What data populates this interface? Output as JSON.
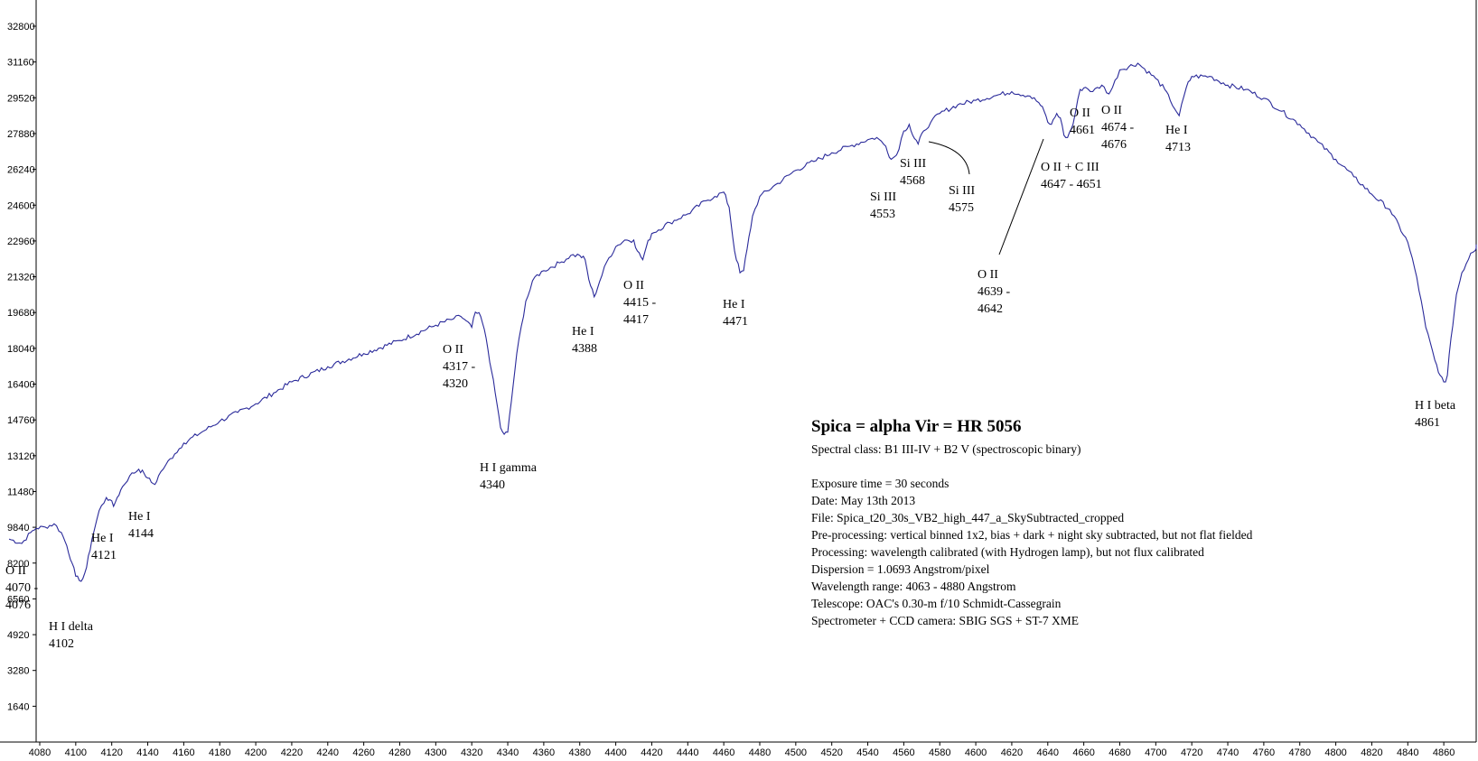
{
  "chart_data": {
    "type": "line",
    "title": "Spica = alpha Vir = HR 5056",
    "xlabel": "",
    "ylabel": "",
    "xlim": [
      4078,
      4878
    ],
    "ylim": [
      0,
      34000
    ],
    "x_ticks": [
      "4080",
      "4100",
      "4120",
      "4140",
      "4160",
      "4180",
      "4200",
      "4220",
      "4240",
      "4260",
      "4280",
      "4300",
      "4320",
      "4340",
      "4360",
      "4380",
      "4400",
      "4420",
      "4440",
      "4460",
      "4480",
      "4500",
      "4520",
      "4540",
      "4560",
      "4580",
      "4600",
      "4620",
      "4640",
      "4660",
      "4680",
      "4700",
      "4720",
      "4740",
      "4760",
      "4780",
      "4800",
      "4820",
      "4840",
      "4860"
    ],
    "y_ticks": [
      "1640",
      "3280",
      "4920",
      "6560",
      "8200",
      "9840",
      "11480",
      "13120",
      "14760",
      "16400",
      "18040",
      "19680",
      "21320",
      "22960",
      "24600",
      "26240",
      "27880",
      "29520",
      "31160",
      "32800"
    ],
    "series": [
      {
        "x": [
          4063,
          4070,
          4075,
          4078,
          4083,
          4088,
          4092,
          4095,
          4098,
          4100,
          4102,
          4104,
          4106,
          4109,
          4113,
          4117,
          4119,
          4121,
          4123,
          4126,
          4130,
          4135,
          4138,
          4140,
          4142,
          4144,
          4146,
          4150,
          4155,
          4160,
          4170,
          4180,
          4190,
          4200,
          4210,
          4220,
          4240,
          4260,
          4280,
          4300,
          4310,
          4314,
          4317,
          4320,
          4322,
          4325,
          4328,
          4331,
          4334,
          4336,
          4338,
          4340,
          4342,
          4345,
          4350,
          4355,
          4360,
          4370,
          4375,
          4380,
          4383,
          4385,
          4388,
          4391,
          4395,
          4400,
          4405,
          4410,
          4412,
          4415,
          4417,
          4420,
          4430,
          4440,
          4450,
          4455,
          4460,
          4463,
          4466,
          4469,
          4471,
          4473,
          4476,
          4480,
          4490,
          4500,
          4510,
          4520,
          4530,
          4540,
          4545,
          4550,
          4553,
          4556,
          4560,
          4563,
          4565,
          4568,
          4571,
          4575,
          4580,
          4590,
          4600,
          4610,
          4620,
          4630,
          4635,
          4638,
          4640,
          4642,
          4645,
          4647,
          4649,
          4651,
          4654,
          4658,
          4661,
          4665,
          4670,
          4674,
          4676,
          4680,
          4690,
          4700,
          4705,
          4708,
          4713,
          4717,
          4720,
          4730,
          4740,
          4750,
          4760,
          4770,
          4780,
          4790,
          4800,
          4810,
          4820,
          4830,
          4840,
          4845,
          4850,
          4855,
          4858,
          4860,
          4861,
          4862,
          4864,
          4867,
          4870,
          4875,
          4880
        ],
        "y": [
          9300,
          9100,
          9600,
          9800,
          9850,
          10000,
          9600,
          9000,
          8200,
          7600,
          7400,
          7500,
          8000,
          9300,
          10600,
          11200,
          11100,
          10800,
          11200,
          11700,
          12200,
          12500,
          12300,
          12100,
          11900,
          11800,
          12200,
          12700,
          13200,
          13700,
          14200,
          14700,
          15100,
          15500,
          16000,
          16500,
          17200,
          17800,
          18400,
          19100,
          19400,
          19500,
          19300,
          19000,
          19700,
          19500,
          18500,
          17000,
          15500,
          14400,
          14100,
          14200,
          15600,
          17800,
          20200,
          21300,
          21600,
          22000,
          22300,
          22300,
          22100,
          21200,
          20400,
          21100,
          22000,
          22700,
          23000,
          23000,
          22500,
          22100,
          22700,
          23300,
          23800,
          24200,
          24800,
          25000,
          25200,
          24500,
          22500,
          21500,
          21600,
          22600,
          24100,
          25000,
          25600,
          26200,
          26600,
          27000,
          27300,
          27600,
          27700,
          27300,
          26700,
          26900,
          28000,
          28300,
          27800,
          27400,
          28000,
          28400,
          28800,
          29200,
          29400,
          29600,
          29800,
          29600,
          29300,
          28900,
          28400,
          28300,
          28800,
          28600,
          27800,
          27700,
          28300,
          29900,
          30000,
          29800,
          30100,
          29700,
          30000,
          30800,
          31100,
          30400,
          29900,
          29400,
          28700,
          30000,
          30500,
          30500,
          30100,
          29900,
          29500,
          28900,
          28300,
          27500,
          26700,
          25900,
          25100,
          24400,
          22900,
          21300,
          19000,
          17500,
          16800,
          16500,
          16500,
          16800,
          18500,
          20500,
          21500,
          22400,
          22800
        ]
      }
    ],
    "annotations": [
      {
        "label": "O II",
        "range": "4070 -",
        "range2": "4076"
      },
      {
        "label": "H I delta",
        "range": "4102"
      },
      {
        "label": "He I",
        "range": "4121"
      },
      {
        "label": "He I",
        "range": "4144"
      },
      {
        "label": "O II",
        "range": "4317 -",
        "range2": "4320"
      },
      {
        "label": "H I gamma",
        "range": "4340"
      },
      {
        "label": "He I",
        "range": "4388"
      },
      {
        "label": "O II",
        "range": "4415 -",
        "range2": "4417"
      },
      {
        "label": "He I",
        "range": "4471"
      },
      {
        "label": "Si III",
        "range": "4553"
      },
      {
        "label": "Si III",
        "range": "4568"
      },
      {
        "label": "Si III",
        "range": "4575"
      },
      {
        "label": "O II",
        "range": "4639 -",
        "range2": "4642"
      },
      {
        "label": "O II + C III",
        "range": "4647 - 4651"
      },
      {
        "label": "O II",
        "range": "4661"
      },
      {
        "label": "O II",
        "range": "4674 -",
        "range2": "4676"
      },
      {
        "label": "He I",
        "range": "4713"
      },
      {
        "label": "H I  beta",
        "range": "4861"
      }
    ],
    "colors": {
      "line": "#2a2a9a",
      "axis": "#000000",
      "leader": "#000000"
    }
  },
  "info": {
    "title": "Spica = alpha Vir = HR 5056",
    "spectral_class": "Spectral class:  B1 III-IV  +  B2 V   (spectroscopic binary)",
    "exposure": "Exposure time = 30 seconds",
    "date": "Date: May 13th 2013",
    "file": "File: Spica_t20_30s_VB2_high_447_a_SkySubtracted_cropped",
    "preprocessing": "Pre-processing: vertical binned 1x2, bias + dark + night sky subtracted, but not flat fielded",
    "processing": "Processing: wavelength calibrated (with Hydrogen lamp), but not flux calibrated",
    "dispersion": "Dispersion = 1.0693 Angstrom/pixel",
    "range": "Wavelength range: 4063 - 4880 Angstrom",
    "telescope": "Telescope: OAC's  0.30-m f/10 Schmidt-Cassegrain",
    "spectrometer": "Spectrometer + CCD camera: SBIG SGS + ST-7 XME"
  }
}
